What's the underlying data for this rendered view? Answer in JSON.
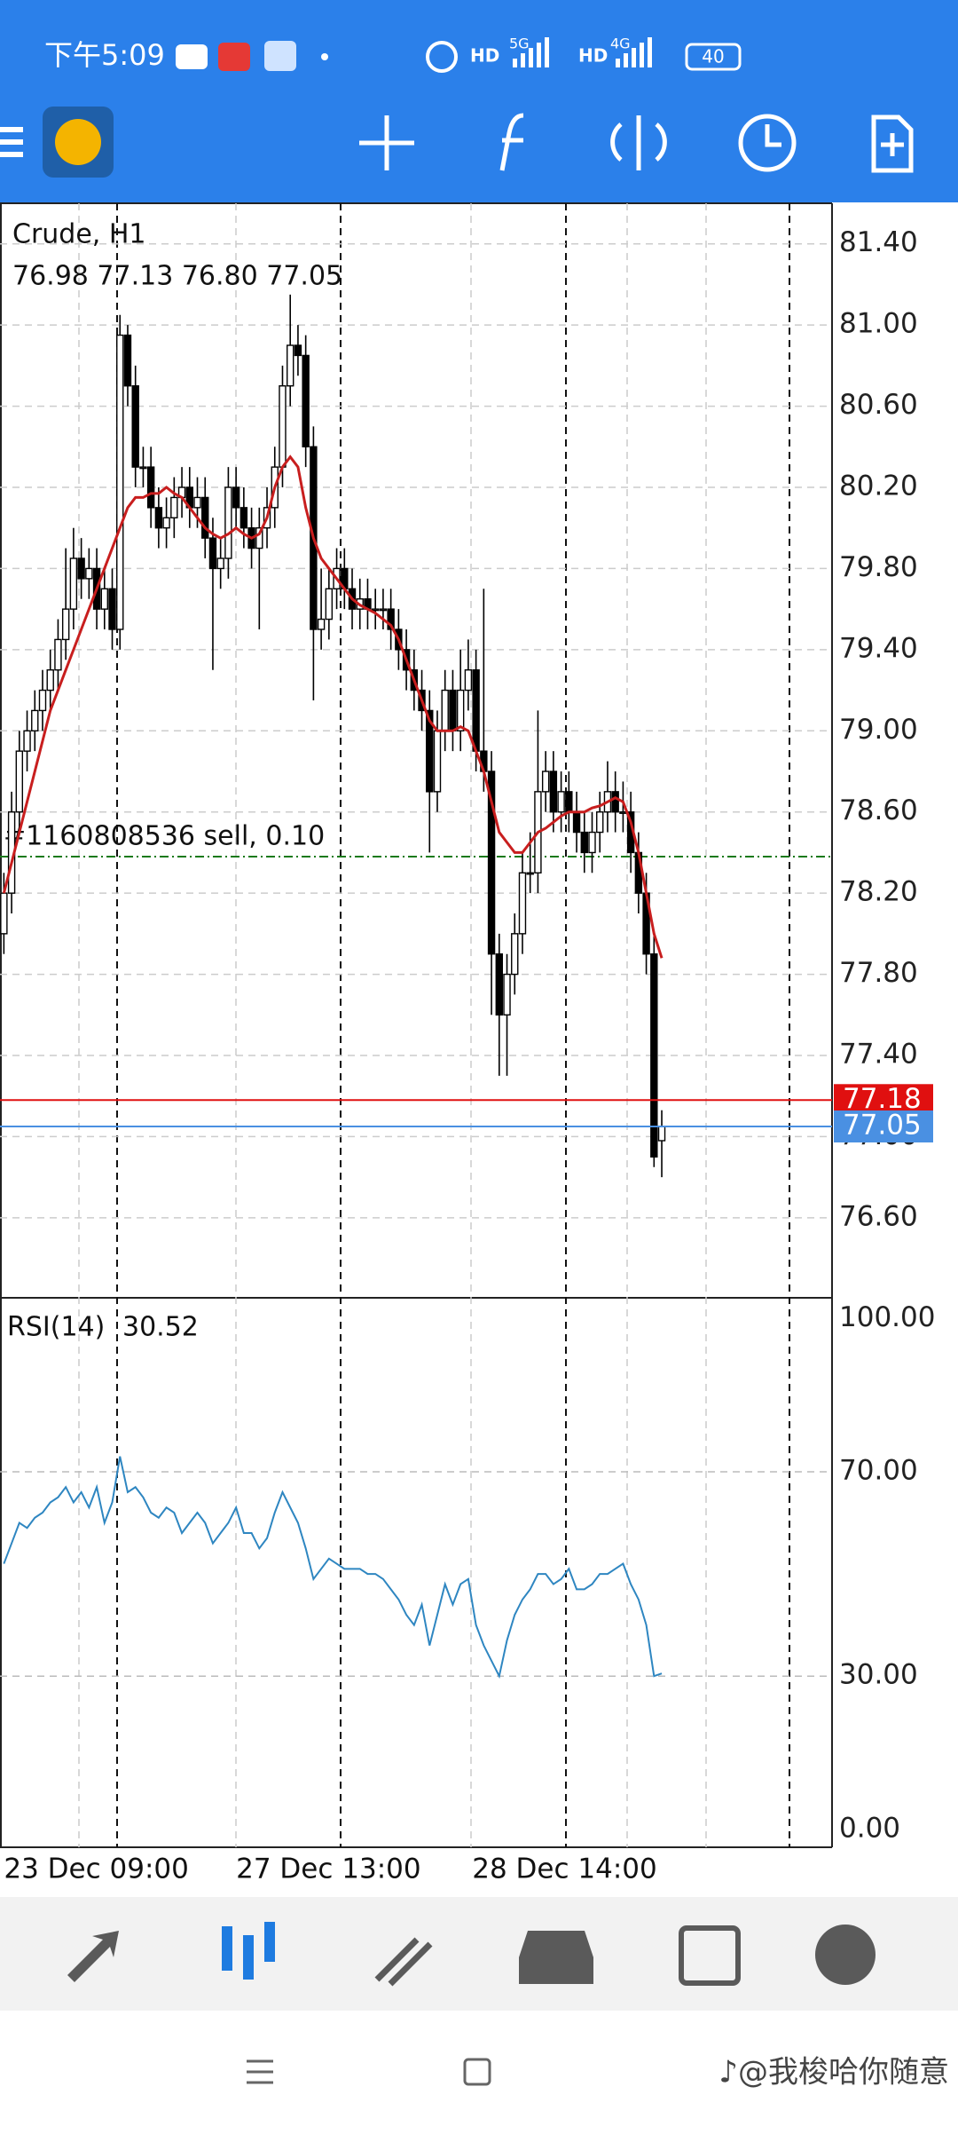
{
  "status_bar": {
    "time": "下午5:09",
    "indicators": [
      "HD",
      "5G",
      "HD",
      "4G"
    ],
    "battery": "40"
  },
  "chart_data": [
    {
      "type": "candlestick",
      "title": "Crude, H1",
      "info": "76.98 77.13 76.80 77.05",
      "open": [
        78.0,
        78.2,
        78.6,
        78.9,
        79.0,
        79.1,
        79.2,
        79.3,
        79.45,
        79.6,
        79.85,
        79.75,
        79.8,
        79.6,
        79.7,
        79.5,
        80.95,
        80.7,
        80.3,
        80.3,
        80.1,
        80.0,
        80.05,
        80.15,
        80.2,
        80.1,
        80.15,
        79.95,
        79.8,
        79.85,
        80.2,
        80.1,
        80.0,
        79.9,
        80.0,
        80.1,
        80.3,
        80.7,
        80.9,
        80.85,
        80.4,
        79.5,
        79.55,
        79.7,
        79.8,
        79.7,
        79.6,
        79.65,
        79.6,
        79.6,
        79.6,
        79.5,
        79.4,
        79.3,
        79.2,
        79.1,
        78.7,
        79.0,
        79.2,
        79.0,
        79.2,
        79.3,
        78.9,
        78.8,
        77.9,
        77.6,
        77.8,
        78.0,
        78.3,
        78.3,
        78.7,
        78.8,
        78.6,
        78.7,
        78.6,
        78.5,
        78.4,
        78.5,
        78.6,
        78.7,
        78.6,
        78.6,
        78.4,
        78.2,
        77.9,
        76.98
      ],
      "high": [
        78.3,
        78.7,
        79.0,
        79.1,
        79.2,
        79.3,
        79.4,
        79.55,
        79.9,
        80.0,
        79.95,
        79.9,
        79.9,
        79.8,
        79.8,
        81.05,
        81.0,
        80.8,
        80.4,
        80.4,
        80.2,
        80.15,
        80.25,
        80.3,
        80.3,
        80.25,
        80.25,
        80.05,
        79.95,
        80.3,
        80.3,
        80.2,
        80.1,
        80.1,
        80.2,
        80.4,
        80.8,
        81.15,
        81.0,
        80.95,
        80.5,
        79.8,
        79.8,
        79.9,
        79.9,
        79.8,
        79.75,
        79.75,
        79.7,
        79.7,
        79.7,
        79.6,
        79.5,
        79.4,
        79.3,
        79.2,
        79.1,
        79.3,
        79.3,
        79.4,
        79.45,
        79.4,
        79.7,
        78.9,
        78.0,
        77.9,
        78.1,
        78.4,
        78.5,
        79.1,
        78.9,
        78.9,
        78.8,
        78.8,
        78.7,
        78.6,
        78.6,
        78.7,
        78.85,
        78.8,
        78.75,
        78.7,
        78.5,
        78.3,
        78.0,
        77.13
      ],
      "low": [
        77.9,
        78.1,
        78.5,
        78.8,
        78.9,
        79.0,
        79.1,
        79.2,
        79.35,
        79.5,
        79.65,
        79.65,
        79.5,
        79.5,
        79.4,
        79.4,
        80.6,
        80.2,
        80.2,
        80.0,
        79.9,
        79.9,
        79.95,
        80.05,
        80.0,
        80.0,
        79.85,
        79.3,
        79.7,
        79.75,
        80.0,
        79.9,
        79.8,
        79.5,
        79.9,
        80.0,
        80.2,
        80.6,
        80.75,
        80.3,
        79.15,
        79.4,
        79.45,
        79.6,
        79.6,
        79.5,
        79.5,
        79.5,
        79.5,
        79.5,
        79.4,
        79.3,
        79.2,
        79.1,
        79.0,
        78.4,
        78.6,
        78.9,
        78.9,
        78.9,
        79.1,
        78.8,
        78.7,
        77.6,
        77.3,
        77.3,
        77.7,
        77.9,
        78.2,
        78.2,
        78.6,
        78.5,
        78.5,
        78.5,
        78.4,
        78.3,
        78.3,
        78.4,
        78.5,
        78.5,
        78.5,
        78.3,
        78.1,
        77.8,
        76.85,
        76.8
      ],
      "close": [
        78.2,
        78.6,
        78.9,
        79.0,
        79.1,
        79.2,
        79.3,
        79.45,
        79.6,
        79.85,
        79.75,
        79.8,
        79.6,
        79.7,
        79.5,
        80.95,
        80.7,
        80.3,
        80.3,
        80.1,
        80.0,
        80.05,
        80.15,
        80.2,
        80.1,
        80.15,
        79.95,
        79.8,
        79.85,
        80.2,
        80.1,
        80.0,
        79.9,
        80.0,
        80.1,
        80.3,
        80.7,
        80.9,
        80.85,
        80.4,
        79.5,
        79.55,
        79.7,
        79.8,
        79.7,
        79.6,
        79.65,
        79.6,
        79.6,
        79.6,
        79.5,
        79.4,
        79.3,
        79.2,
        79.1,
        78.7,
        79.0,
        79.2,
        79.0,
        79.2,
        79.3,
        78.9,
        78.8,
        77.9,
        77.6,
        77.8,
        78.0,
        78.3,
        78.3,
        78.7,
        78.8,
        78.6,
        78.7,
        78.6,
        78.5,
        78.4,
        78.5,
        78.6,
        78.7,
        78.6,
        78.6,
        78.4,
        78.2,
        77.9,
        76.9,
        77.05
      ],
      "series": [
        {
          "color": "#c81e1e",
          "values": [
            78.2,
            78.35,
            78.5,
            78.65,
            78.8,
            78.95,
            79.1,
            79.2,
            79.3,
            79.4,
            79.5,
            79.6,
            79.7,
            79.8,
            79.9,
            80.0,
            80.1,
            80.15,
            80.15,
            80.17,
            80.17,
            80.2,
            80.17,
            80.15,
            80.1,
            80.05,
            80.0,
            79.97,
            79.95,
            79.97,
            80.0,
            79.97,
            79.95,
            79.97,
            80.05,
            80.2,
            80.3,
            80.35,
            80.3,
            80.1,
            79.95,
            79.85,
            79.8,
            79.75,
            79.7,
            79.65,
            79.62,
            79.6,
            79.58,
            79.55,
            79.52,
            79.45,
            79.35,
            79.25,
            79.15,
            79.05,
            79.0,
            79.0,
            79.0,
            79.02,
            79.0,
            78.9,
            78.8,
            78.65,
            78.5,
            78.45,
            78.4,
            78.4,
            78.45,
            78.5,
            78.52,
            78.55,
            78.58,
            78.6,
            78.6,
            78.6,
            78.62,
            78.63,
            78.65,
            78.67,
            78.65,
            78.55,
            78.4,
            78.2,
            78.0,
            77.88
          ]
        }
      ],
      "bull_color": "#ffffff",
      "bear_color": "#000000",
      "price_lines": [
        {
          "value": 77.18,
          "color": "#e01010"
        },
        {
          "value": 77.05,
          "color": "#4a90e2"
        }
      ],
      "order_line": {
        "value": 78.38,
        "label": "#1160808536 sell, 0.10",
        "color": "#1a7a1a"
      },
      "xlim": [
        -0.5,
        107
      ],
      "ylim": [
        76.21,
        81.6
      ],
      "yticks": [
        {
          "value": 81.4,
          "label": "81.40"
        },
        {
          "value": 81,
          "label": "81.00"
        },
        {
          "value": 80.6,
          "label": "80.60"
        },
        {
          "value": 80.2,
          "label": "80.20"
        },
        {
          "value": 79.8,
          "label": "79.80"
        },
        {
          "value": 79.4,
          "label": "79.40"
        },
        {
          "value": 79,
          "label": "79.00"
        },
        {
          "value": 78.6,
          "label": "78.60"
        },
        {
          "value": 78.2,
          "label": "78.20"
        },
        {
          "value": 77.8,
          "label": "77.80"
        },
        {
          "value": 77.4,
          "label": "77.40"
        },
        {
          "value": 77,
          "label": "77.00"
        },
        {
          "value": 76.6,
          "label": "76.60"
        }
      ],
      "xticks": [
        {
          "value": 0,
          "label": "23 Dec 09:00"
        },
        {
          "value": 30,
          "label": "27 Dec 13:00"
        },
        {
          "value": 60.5,
          "label": "28 Dec 14:00"
        }
      ],
      "grid": true
    },
    {
      "type": "line",
      "title": "RSI(14)",
      "color": "#2e86c1",
      "values": [
        52,
        56,
        60,
        59,
        61,
        62,
        64,
        65,
        67,
        64,
        66,
        63,
        67,
        60,
        64,
        73,
        66,
        67,
        65,
        62,
        61,
        63,
        62,
        58,
        60,
        62,
        60,
        56,
        58,
        60,
        63,
        58,
        58,
        55,
        57,
        62,
        66,
        63,
        60,
        55,
        49,
        51,
        53,
        52,
        51,
        51,
        51,
        50,
        50,
        49,
        47,
        45,
        42,
        40,
        44,
        36,
        42,
        48,
        44,
        48,
        49,
        40,
        36,
        33,
        30,
        37,
        42,
        45,
        47,
        50,
        50,
        48,
        49,
        51,
        47,
        47,
        48,
        50,
        50,
        51,
        52,
        48,
        45,
        40,
        30,
        30.52
      ],
      "xlim": [
        -0.5,
        107
      ],
      "ylim": [
        -3.5,
        103.7
      ],
      "yticks": [
        {
          "value": 100,
          "label": "100.00"
        },
        {
          "value": 70,
          "label": "70.00"
        },
        {
          "value": 30,
          "label": "30.00"
        },
        {
          "value": 0,
          "label": "0.00"
        }
      ],
      "grid_ticks": [
        1,
        2
      ]
    }
  ],
  "watermark": "♪@我梭哈你随意"
}
